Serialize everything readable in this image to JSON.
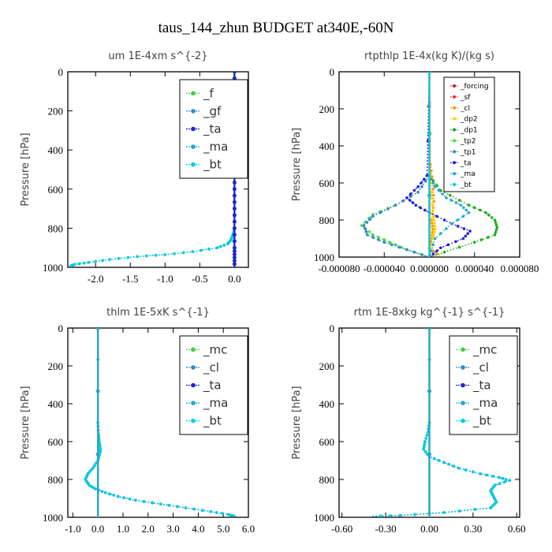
{
  "figure": {
    "title": "taus_144_zhun  BUDGET at340E,-60N"
  },
  "chart_data": [
    {
      "type": "line",
      "title": "um   1E-4xm s^{-2}",
      "ylabel": "Pressure [hPa]",
      "xlabel": "",
      "xlim": [
        -2.4,
        0.2
      ],
      "ylim": [
        1000,
        0
      ],
      "xticks": [
        -2.0,
        -1.5,
        -1.0,
        -0.5,
        0.0
      ],
      "xticklabels": [
        "-2.0",
        "-1.5",
        "-1.0",
        "-0.5",
        "0.0"
      ],
      "yticks": [
        0,
        200,
        400,
        600,
        800,
        1000
      ],
      "yticklabels": [
        "0",
        "200",
        "400",
        "600",
        "800",
        "1000"
      ],
      "legend": {
        "position": "top-right",
        "size": "big"
      },
      "series": [
        {
          "name": "_f",
          "color": "#44cc44",
          "x": [
            0,
            0,
            0,
            0,
            0,
            0,
            0,
            0,
            0,
            0,
            0,
            0
          ],
          "y": [
            0,
            100,
            200,
            300,
            400,
            500,
            600,
            700,
            800,
            900,
            950,
            1000
          ]
        },
        {
          "name": "_gf",
          "color": "#3388cc",
          "x": [
            0,
            0,
            0,
            0,
            0,
            0,
            0,
            0,
            0,
            0,
            0,
            0
          ],
          "y": [
            0,
            100,
            200,
            300,
            400,
            500,
            600,
            700,
            800,
            900,
            950,
            1000
          ]
        },
        {
          "name": "_ta",
          "color": "#2222cc",
          "x": [
            0,
            0,
            0,
            0,
            0,
            0,
            0,
            0,
            0,
            0,
            0,
            0
          ],
          "y": [
            0,
            100,
            200,
            300,
            400,
            500,
            600,
            700,
            800,
            900,
            950,
            1000
          ]
        },
        {
          "name": "_ma",
          "color": "#22aacc",
          "x": [
            0,
            0,
            0,
            0,
            0,
            0,
            -0.01,
            -0.03,
            -0.05,
            -0.1,
            -0.25,
            -0.6,
            -1.0,
            -1.4,
            -1.8,
            -2.1,
            -2.3,
            -2.38
          ],
          "y": [
            0,
            200,
            400,
            600,
            700,
            800,
            820,
            840,
            860,
            880,
            900,
            920,
            935,
            945,
            960,
            975,
            985,
            995
          ]
        },
        {
          "name": "_bt",
          "color": "#00ccdd",
          "x": [
            0,
            0,
            0,
            0,
            0,
            0,
            -0.01,
            -0.03,
            -0.05,
            -0.1,
            -0.25,
            -0.6,
            -1.0,
            -1.4,
            -1.8,
            -2.1,
            -2.3,
            -2.38
          ],
          "y": [
            0,
            200,
            400,
            600,
            700,
            800,
            820,
            840,
            860,
            880,
            900,
            920,
            935,
            945,
            960,
            975,
            985,
            995
          ]
        }
      ]
    },
    {
      "type": "line",
      "title": "rtpthlp   1E-4x(kg K)/(kg s)",
      "ylabel": "Pressure [hPa]",
      "xlabel": "",
      "xlim": [
        -8e-05,
        8e-05
      ],
      "ylim": [
        1000,
        0
      ],
      "xticks": [
        -8e-05,
        -4e-05,
        0.0,
        4e-05,
        8e-05
      ],
      "xticklabels": [
        "-0.000080",
        "-0.000040",
        "0.000000",
        "0.000040",
        "0.000080"
      ],
      "yticks": [
        0,
        200,
        400,
        600,
        800,
        1000
      ],
      "yticklabels": [
        "0",
        "200",
        "400",
        "600",
        "800",
        "1000"
      ],
      "legend": {
        "position": "top-right",
        "size": "small"
      },
      "series": [
        {
          "name": "_forcing",
          "color": "#cc2222",
          "x": [
            0,
            0
          ],
          "y": [
            0,
            1000
          ]
        },
        {
          "name": "_sf",
          "color": "#dd3333",
          "x": [
            0,
            0
          ],
          "y": [
            0,
            1000
          ]
        },
        {
          "name": "_cl",
          "color": "#ff9900",
          "x": [
            0,
            1e-06,
            3e-06,
            4e-06,
            2e-06,
            3e-06,
            2e-06,
            0,
            1e-05
          ],
          "y": [
            0,
            500,
            600,
            700,
            800,
            850,
            900,
            950,
            1000
          ]
        },
        {
          "name": "_dp2",
          "color": "#ffcc00",
          "x": [
            0,
            0,
            2e-06,
            3e-06,
            4e-06,
            5e-06,
            3e-06,
            0
          ],
          "y": [
            0,
            500,
            650,
            750,
            800,
            850,
            900,
            1000
          ]
        },
        {
          "name": "_dp1",
          "color": "#22aa22",
          "x": [
            0,
            0,
            1e-05,
            3.5e-05,
            5e-05,
            5.8e-05,
            6e-05,
            5.8e-05,
            4e-05,
            0
          ],
          "y": [
            0,
            560,
            640,
            720,
            760,
            800,
            840,
            880,
            920,
            1000
          ]
        },
        {
          "name": "_tp2",
          "color": "#44dd44",
          "x": [
            0,
            0,
            -1e-05,
            -3e-05,
            -5e-05,
            -6e-05,
            -5e-05,
            -3.5e-05,
            -2e-05,
            0
          ],
          "y": [
            0,
            560,
            650,
            720,
            770,
            830,
            880,
            920,
            960,
            1000
          ]
        },
        {
          "name": "_tp1",
          "color": "#3388cc",
          "x": [
            0,
            0,
            -1e-05,
            -3e-05,
            -5e-05,
            -5.8e-05,
            -5.5e-05,
            -4e-05,
            -2e-05,
            0
          ],
          "y": [
            0,
            560,
            650,
            720,
            780,
            830,
            880,
            920,
            960,
            1000
          ]
        },
        {
          "name": "_ta",
          "color": "#2222cc",
          "x": [
            0,
            -2e-06,
            -1e-05,
            -2e-05,
            -1.2e-05,
            0,
            2e-05,
            3.6e-05,
            3e-05,
            1e-05,
            0
          ],
          "y": [
            0,
            560,
            620,
            680,
            720,
            760,
            820,
            860,
            900,
            950,
            1000
          ]
        },
        {
          "name": "_ma",
          "color": "#22aacc",
          "x": [
            0,
            0,
            5e-06,
            1.5e-05,
            2.8e-05,
            3.5e-05,
            2e-05,
            5e-06,
            0
          ],
          "y": [
            0,
            560,
            620,
            680,
            720,
            760,
            820,
            900,
            1000
          ]
        },
        {
          "name": "_bt",
          "color": "#00ccdd",
          "x": [
            0,
            0
          ],
          "y": [
            0,
            1000
          ]
        }
      ]
    },
    {
      "type": "line",
      "title": "thlm   1E-5xK s^{-1}",
      "ylabel": "Pressure [hPa]",
      "xlabel": "",
      "xlim": [
        -1.2,
        6.0
      ],
      "ylim": [
        1000,
        0
      ],
      "xticks": [
        -1.0,
        0.0,
        1.0,
        2.0,
        3.0,
        4.0,
        5.0,
        6.0
      ],
      "xticklabels": [
        "-1.0",
        "0.0",
        "1.0",
        "2.0",
        "3.0",
        "4.0",
        "5.0",
        "6.0"
      ],
      "yticks": [
        0,
        200,
        400,
        600,
        800,
        1000
      ],
      "yticklabels": [
        "0",
        "200",
        "400",
        "600",
        "800",
        "1000"
      ],
      "legend": {
        "position": "top-right",
        "size": "big"
      },
      "series": [
        {
          "name": "_mc",
          "color": "#44cc44",
          "x": [
            0,
            0
          ],
          "y": [
            0,
            1000
          ]
        },
        {
          "name": "_cl",
          "color": "#3388cc",
          "x": [
            0,
            0
          ],
          "y": [
            0,
            1000
          ]
        },
        {
          "name": "_ta",
          "color": "#2222cc",
          "x": [
            0,
            0,
            0.02,
            0.05,
            0.1,
            0.08,
            0,
            -0.2,
            -0.4,
            -0.5,
            -0.35,
            -0.1,
            0.3,
            0.8,
            1.5,
            2.5,
            3.5,
            4.5,
            5.2,
            5.5
          ],
          "y": [
            0,
            500,
            560,
            600,
            640,
            660,
            700,
            740,
            770,
            800,
            830,
            850,
            870,
            890,
            910,
            930,
            950,
            970,
            985,
            995
          ]
        },
        {
          "name": "_ma",
          "color": "#22aacc",
          "x": [
            0,
            0
          ],
          "y": [
            0,
            1000
          ]
        },
        {
          "name": "_bt",
          "color": "#00ccdd",
          "x": [
            0,
            0,
            0.02,
            0.05,
            0.1,
            0.08,
            0,
            -0.2,
            -0.4,
            -0.5,
            -0.35,
            -0.1,
            0.3,
            0.8,
            1.5,
            2.5,
            3.5,
            4.5,
            5.2,
            5.5
          ],
          "y": [
            0,
            500,
            560,
            600,
            640,
            660,
            700,
            740,
            770,
            800,
            830,
            850,
            870,
            890,
            910,
            930,
            950,
            970,
            985,
            995
          ]
        }
      ]
    },
    {
      "type": "line",
      "title": "rtm   1E-8xkg kg^{-1} s^{-1}",
      "ylabel": "Pressure [hPa]",
      "xlabel": "",
      "xlim": [
        -0.62,
        0.62
      ],
      "ylim": [
        1000,
        0
      ],
      "xticks": [
        -0.6,
        -0.3,
        0.0,
        0.3,
        0.6
      ],
      "xticklabels": [
        "-0.60",
        "-0.30",
        "0.00",
        "0.30",
        "0.60"
      ],
      "yticks": [
        0,
        200,
        400,
        600,
        800,
        1000
      ],
      "yticklabels": [
        "0",
        "200",
        "400",
        "600",
        "800",
        "1000"
      ],
      "legend": {
        "position": "top-right",
        "size": "big"
      },
      "series": [
        {
          "name": "_mc",
          "color": "#44cc44",
          "x": [
            0,
            0
          ],
          "y": [
            0,
            1000
          ]
        },
        {
          "name": "_cl",
          "color": "#3388cc",
          "x": [
            0,
            0
          ],
          "y": [
            0,
            1000
          ]
        },
        {
          "name": "_ta",
          "color": "#2222cc",
          "x": [
            0,
            0,
            -0.01,
            -0.03,
            -0.04,
            0,
            0.1,
            0.2,
            0.35,
            0.48,
            0.55,
            0.45,
            0.42,
            0.44,
            0.46,
            0.42,
            0.1,
            -0.2,
            -0.4
          ],
          "y": [
            0,
            500,
            550,
            600,
            640,
            680,
            710,
            740,
            770,
            790,
            805,
            830,
            860,
            890,
            920,
            950,
            975,
            990,
            995
          ]
        },
        {
          "name": "_ma",
          "color": "#22aacc",
          "x": [
            0,
            0
          ],
          "y": [
            0,
            1000
          ]
        },
        {
          "name": "_bt",
          "color": "#00ccdd",
          "x": [
            0,
            0,
            -0.01,
            -0.03,
            -0.04,
            0,
            0.1,
            0.2,
            0.35,
            0.48,
            0.55,
            0.45,
            0.42,
            0.44,
            0.46,
            0.42,
            0.1,
            -0.2,
            -0.4
          ],
          "y": [
            0,
            500,
            550,
            600,
            640,
            680,
            710,
            740,
            770,
            790,
            805,
            830,
            860,
            890,
            920,
            950,
            975,
            990,
            995
          ]
        }
      ]
    }
  ]
}
